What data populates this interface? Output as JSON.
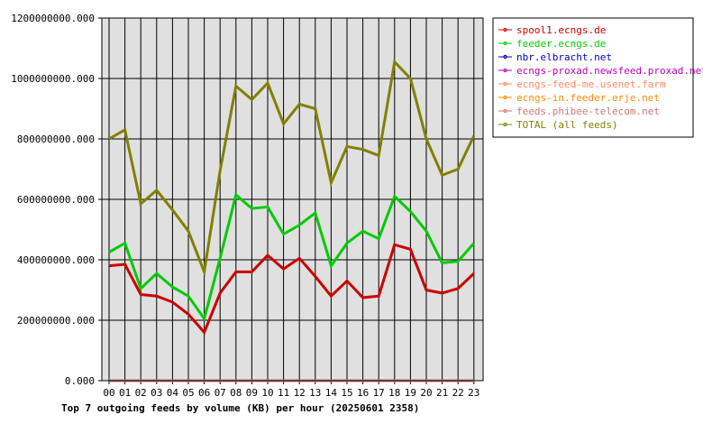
{
  "chart_data": {
    "type": "line",
    "title": "Top 7 outgoing feeds by volume (KB) per hour (20250601 2358)",
    "xlabel": "",
    "ylabel": "",
    "categories": [
      "00",
      "01",
      "02",
      "03",
      "04",
      "05",
      "06",
      "07",
      "08",
      "09",
      "10",
      "11",
      "12",
      "13",
      "14",
      "15",
      "16",
      "17",
      "18",
      "19",
      "20",
      "21",
      "22",
      "23"
    ],
    "ylim": [
      0,
      1200000000
    ],
    "yticks": [
      0,
      200000000,
      400000000,
      600000000,
      800000000,
      1000000000,
      1200000000
    ],
    "ytick_labels": [
      "0.000",
      "200000000.000",
      "400000000.000",
      "600000000.000",
      "800000000.000",
      "1000000000.000",
      "1200000000.000"
    ],
    "grid": true,
    "legend_position": "right",
    "series": [
      {
        "name": "spool1.ecngs.de",
        "color": "#cc0000",
        "values": [
          380000000,
          385000000,
          285000000,
          280000000,
          260000000,
          220000000,
          160000000,
          290000000,
          360000000,
          360000000,
          415000000,
          370000000,
          405000000,
          345000000,
          280000000,
          330000000,
          275000000,
          280000000,
          450000000,
          435000000,
          300000000,
          290000000,
          305000000,
          355000000
        ]
      },
      {
        "name": "feeder.ecngs.de",
        "color": "#00cc00",
        "values": [
          425000000,
          455000000,
          305000000,
          355000000,
          310000000,
          280000000,
          205000000,
          405000000,
          615000000,
          570000000,
          575000000,
          485000000,
          515000000,
          555000000,
          380000000,
          455000000,
          495000000,
          470000000,
          610000000,
          560000000,
          495000000,
          390000000,
          395000000,
          455000000
        ]
      },
      {
        "name": "nbr.elbracht.net",
        "color": "#0000bb",
        "values": [
          0,
          0,
          0,
          0,
          0,
          0,
          0,
          0,
          0,
          0,
          0,
          0,
          0,
          0,
          0,
          0,
          0,
          0,
          0,
          0,
          0,
          0,
          0,
          0
        ]
      },
      {
        "name": "ecngs-proxad.newsfeed.proxad.net",
        "color": "#bb00bb",
        "values": [
          0,
          0,
          0,
          0,
          0,
          0,
          0,
          0,
          0,
          0,
          0,
          0,
          0,
          0,
          0,
          0,
          0,
          0,
          0,
          0,
          0,
          0,
          0,
          0
        ]
      },
      {
        "name": "ecngs-feed-me.usenet.farm",
        "color": "#ff8866",
        "values": [
          0,
          0,
          0,
          0,
          0,
          0,
          0,
          0,
          0,
          0,
          0,
          0,
          0,
          0,
          0,
          0,
          0,
          0,
          0,
          0,
          0,
          0,
          0,
          0
        ]
      },
      {
        "name": "ecngs-in.feeder.erje.net",
        "color": "#ff8800",
        "values": [
          0,
          0,
          0,
          0,
          0,
          0,
          0,
          0,
          0,
          0,
          0,
          0,
          0,
          0,
          0,
          0,
          0,
          0,
          0,
          0,
          0,
          0,
          0,
          0
        ]
      },
      {
        "name": "feeds.phibee-telecom.net",
        "color": "#cc7777",
        "values": [
          0,
          0,
          0,
          0,
          0,
          0,
          0,
          0,
          0,
          0,
          0,
          0,
          0,
          0,
          0,
          0,
          0,
          0,
          0,
          0,
          0,
          0,
          0,
          0
        ]
      },
      {
        "name": "TOTAL (all feeds)",
        "color": "#808000",
        "values": [
          800000000,
          830000000,
          585000000,
          630000000,
          565000000,
          495000000,
          360000000,
          695000000,
          975000000,
          930000000,
          985000000,
          850000000,
          915000000,
          900000000,
          655000000,
          775000000,
          765000000,
          745000000,
          1055000000,
          1000000000,
          800000000,
          680000000,
          700000000,
          810000000
        ]
      }
    ]
  }
}
